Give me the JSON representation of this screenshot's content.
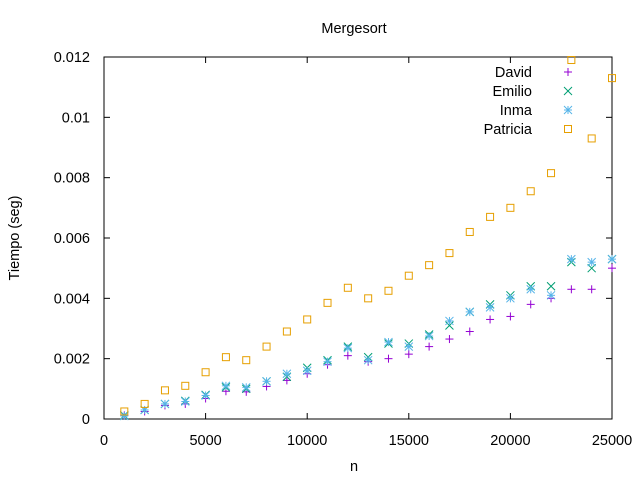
{
  "chart_data": {
    "type": "scatter",
    "title": "Mergesort",
    "xlabel": "n",
    "ylabel": "Tiempo (seg)",
    "xlim": [
      0,
      25000
    ],
    "ylim": [
      0,
      0.012
    ],
    "xticks": [
      "0",
      "5000",
      "10000",
      "15000",
      "20000",
      "25000"
    ],
    "yticks": [
      "0",
      "0.002",
      "0.004",
      "0.006",
      "0.008",
      "0.01",
      "0.012"
    ],
    "grid": false,
    "legend_position": "top-right",
    "series": [
      {
        "name": "David",
        "marker": "plus",
        "color": "#9400d3",
        "points": [
          [
            1000,
            0.00012
          ],
          [
            2000,
            0.00025
          ],
          [
            3000,
            0.00045
          ],
          [
            4000,
            0.0005
          ],
          [
            5000,
            0.00068
          ],
          [
            6000,
            0.00092
          ],
          [
            7000,
            0.0009
          ],
          [
            8000,
            0.00108
          ],
          [
            9000,
            0.00128
          ],
          [
            10000,
            0.0015
          ],
          [
            11000,
            0.0018
          ],
          [
            12000,
            0.0021
          ],
          [
            13000,
            0.0019
          ],
          [
            14000,
            0.002
          ],
          [
            15000,
            0.00215
          ],
          [
            16000,
            0.0024
          ],
          [
            17000,
            0.00265
          ],
          [
            18000,
            0.0029
          ],
          [
            19000,
            0.0033
          ],
          [
            20000,
            0.0034
          ],
          [
            21000,
            0.0038
          ],
          [
            22000,
            0.004
          ],
          [
            23000,
            0.0043
          ],
          [
            24000,
            0.0043
          ],
          [
            25000,
            0.005
          ]
        ]
      },
      {
        "name": "Emilio",
        "marker": "cross",
        "color": "#009e73",
        "points": [
          [
            1000,
            0.00012
          ],
          [
            2000,
            0.0003
          ],
          [
            3000,
            0.0005
          ],
          [
            4000,
            0.0006
          ],
          [
            5000,
            0.0008
          ],
          [
            6000,
            0.00105
          ],
          [
            7000,
            0.001
          ],
          [
            8000,
            0.00125
          ],
          [
            9000,
            0.0014
          ],
          [
            10000,
            0.0017
          ],
          [
            11000,
            0.00195
          ],
          [
            12000,
            0.0024
          ],
          [
            13000,
            0.00205
          ],
          [
            14000,
            0.0025
          ],
          [
            15000,
            0.0025
          ],
          [
            16000,
            0.0028
          ],
          [
            17000,
            0.0031
          ],
          [
            18000,
            0.00355
          ],
          [
            19000,
            0.0038
          ],
          [
            20000,
            0.0041
          ],
          [
            21000,
            0.0044
          ],
          [
            22000,
            0.0044
          ],
          [
            23000,
            0.0052
          ],
          [
            24000,
            0.005
          ],
          [
            25000,
            0.0053
          ]
        ]
      },
      {
        "name": "Inma",
        "marker": "star",
        "color": "#56b4e9",
        "points": [
          [
            1000,
            0.0001
          ],
          [
            2000,
            0.0003
          ],
          [
            3000,
            0.0005
          ],
          [
            4000,
            0.00058
          ],
          [
            5000,
            0.00078
          ],
          [
            6000,
            0.0011
          ],
          [
            7000,
            0.00105
          ],
          [
            8000,
            0.00125
          ],
          [
            9000,
            0.0015
          ],
          [
            10000,
            0.0016
          ],
          [
            11000,
            0.0019
          ],
          [
            12000,
            0.00235
          ],
          [
            13000,
            0.00195
          ],
          [
            14000,
            0.00255
          ],
          [
            15000,
            0.0024
          ],
          [
            16000,
            0.00275
          ],
          [
            17000,
            0.00325
          ],
          [
            18000,
            0.00355
          ],
          [
            19000,
            0.0037
          ],
          [
            20000,
            0.004
          ],
          [
            21000,
            0.0043
          ],
          [
            22000,
            0.0041
          ],
          [
            23000,
            0.0053
          ],
          [
            24000,
            0.0052
          ],
          [
            25000,
            0.0053
          ]
        ]
      },
      {
        "name": "Patricia",
        "marker": "square",
        "color": "#e69f00",
        "points": [
          [
            1000,
            0.00025
          ],
          [
            2000,
            0.0005
          ],
          [
            3000,
            0.00095
          ],
          [
            4000,
            0.0011
          ],
          [
            5000,
            0.00155
          ],
          [
            6000,
            0.00205
          ],
          [
            7000,
            0.00195
          ],
          [
            8000,
            0.0024
          ],
          [
            9000,
            0.0029
          ],
          [
            10000,
            0.0033
          ],
          [
            11000,
            0.00385
          ],
          [
            12000,
            0.00435
          ],
          [
            13000,
            0.004
          ],
          [
            14000,
            0.00425
          ],
          [
            15000,
            0.00475
          ],
          [
            16000,
            0.0051
          ],
          [
            17000,
            0.0055
          ],
          [
            18000,
            0.0062
          ],
          [
            19000,
            0.0067
          ],
          [
            20000,
            0.007
          ],
          [
            21000,
            0.00755
          ],
          [
            22000,
            0.00815
          ],
          [
            23000,
            0.0119
          ],
          [
            24000,
            0.0093
          ],
          [
            25000,
            0.0113
          ]
        ]
      }
    ]
  }
}
